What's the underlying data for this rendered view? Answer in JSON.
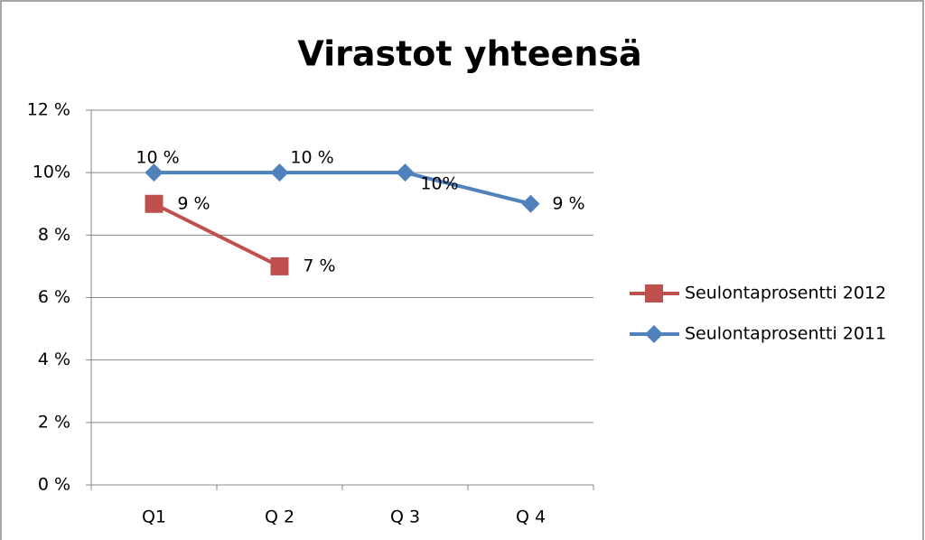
{
  "chart_data": {
    "type": "line",
    "title": "Virastot yhteensä",
    "categories": [
      "Q1",
      "Q 2",
      "Q 3",
      "Q 4"
    ],
    "series": [
      {
        "name": "Seulontaprosentti 2012",
        "color": "#c0504d",
        "marker": "square",
        "values": [
          9,
          7,
          null,
          null
        ],
        "value_labels": [
          "9 %",
          "7 %",
          null,
          null
        ]
      },
      {
        "name": "Seulontaprosentti 2011",
        "color": "#4f81bd",
        "marker": "diamond",
        "values": [
          10,
          10,
          10,
          9
        ],
        "value_labels": [
          "10 %",
          "10 %",
          "10%",
          "9 %"
        ]
      }
    ],
    "ylim": [
      0,
      12
    ],
    "yticks": [
      {
        "value": 0,
        "label": "0 %"
      },
      {
        "value": 2,
        "label": "2 %"
      },
      {
        "value": 4,
        "label": "4 %"
      },
      {
        "value": 6,
        "label": "6 %"
      },
      {
        "value": 8,
        "label": "8 %"
      },
      {
        "value": 10,
        "label": "10%"
      },
      {
        "value": 12,
        "label": "12 %"
      }
    ],
    "grid": true,
    "legend": "right"
  }
}
